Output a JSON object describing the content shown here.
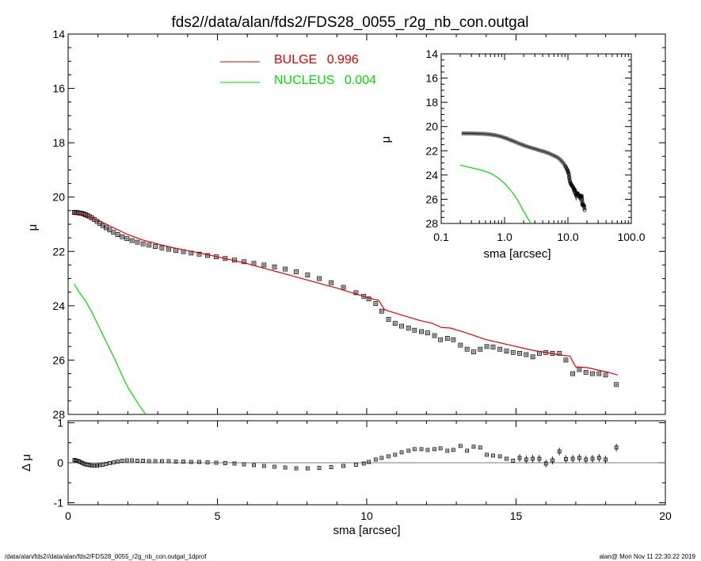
{
  "page_title": "fds2//data/alan/fds2/FDS28_0055_r2g_nb_con.outgal",
  "footer": {
    "left": "/data/alan/fds2//data/alan/fds2/FDS28_0055_r2g_nb_con.outgal_1dprof",
    "right": "alan@  Mon Nov 11 22:30:22 2019"
  },
  "colors": {
    "bulge": "#e00000",
    "nucleus": "#00dd00",
    "obs": "#808080",
    "axis": "#000000"
  },
  "chart_data": [
    {
      "type": "scatter",
      "panel": "main",
      "xlabel": "",
      "ylabel": "μ",
      "xlim": [
        0,
        20
      ],
      "ylim": [
        28,
        14
      ],
      "xticks": [
        {
          "v": 0,
          "t": "0"
        },
        {
          "v": 5,
          "t": "5"
        },
        {
          "v": 10,
          "t": "10"
        },
        {
          "v": 15,
          "t": "15"
        },
        {
          "v": 20,
          "t": "20"
        }
      ],
      "yticks": [
        {
          "v": 14,
          "t": "14"
        },
        {
          "v": 16,
          "t": "16"
        },
        {
          "v": 18,
          "t": "18"
        },
        {
          "v": 20,
          "t": "20"
        },
        {
          "v": 22,
          "t": "22"
        },
        {
          "v": 24,
          "t": "24"
        },
        {
          "v": 26,
          "t": "26"
        },
        {
          "v": 28,
          "t": "28"
        }
      ],
      "legend": [
        {
          "name": "BULGE",
          "value": "0.996",
          "color": "#e00000"
        },
        {
          "name": "NUCLEUS",
          "value": "0.004",
          "color": "#00dd00"
        }
      ],
      "observed": {
        "x": [
          0.21,
          0.25,
          0.3,
          0.35,
          0.4,
          0.46,
          0.52,
          0.58,
          0.65,
          0.72,
          0.8,
          0.88,
          0.97,
          1.06,
          1.16,
          1.27,
          1.39,
          1.52,
          1.66,
          1.81,
          1.97,
          2.14,
          2.32,
          2.51,
          2.71,
          2.92,
          3.14,
          3.37,
          3.61,
          3.86,
          4.12,
          4.39,
          4.67,
          4.96,
          5.26,
          5.57,
          5.89,
          6.22,
          6.56,
          6.91,
          7.27,
          7.64,
          8.02,
          8.41,
          8.81,
          9.22,
          9.64,
          9.9,
          10.07,
          10.3,
          10.5,
          10.73,
          10.95,
          11.17,
          11.4,
          11.6,
          11.83,
          12.04,
          12.27,
          12.47,
          12.7,
          12.9,
          13.14,
          13.36,
          13.58,
          13.8,
          14.02,
          14.23,
          14.46,
          14.68,
          14.9,
          15.12,
          15.34,
          15.56,
          15.78,
          16.0,
          16.22,
          16.45,
          16.67,
          16.9,
          17.12,
          17.34,
          17.56,
          17.78,
          18.0,
          18.36
        ],
        "y": [
          20.56,
          20.57,
          20.57,
          20.58,
          20.59,
          20.6,
          20.62,
          20.65,
          20.68,
          20.72,
          20.77,
          20.83,
          20.9,
          20.97,
          21.05,
          21.13,
          21.21,
          21.3,
          21.38,
          21.46,
          21.53,
          21.6,
          21.66,
          21.72,
          21.77,
          21.82,
          21.87,
          21.92,
          21.97,
          22.01,
          22.06,
          22.1,
          22.15,
          22.2,
          22.26,
          22.32,
          22.38,
          22.44,
          22.5,
          22.57,
          22.65,
          22.75,
          22.87,
          23.0,
          23.15,
          23.32,
          23.52,
          23.65,
          23.75,
          23.92,
          24.2,
          24.5,
          24.65,
          24.75,
          24.82,
          24.9,
          24.95,
          25.0,
          25.1,
          25.25,
          25.2,
          25.25,
          25.45,
          25.6,
          25.7,
          25.6,
          25.5,
          25.52,
          25.6,
          25.67,
          25.72,
          25.75,
          25.8,
          25.88,
          25.75,
          25.72,
          25.75,
          25.75,
          26.0,
          26.5,
          26.35,
          26.45,
          26.5,
          26.5,
          26.55,
          26.9
        ]
      },
      "model_bulge": {
        "x": [
          0.2,
          0.5,
          1.0,
          1.5,
          2.0,
          2.5,
          3.0,
          3.5,
          4.0,
          4.5,
          5.0,
          5.5,
          6.0,
          6.5,
          7.0,
          7.5,
          8.0,
          8.5,
          9.0,
          9.5,
          9.9,
          10.2,
          10.4,
          10.6,
          10.9,
          11.2,
          11.5,
          11.8,
          12.2,
          12.5,
          12.8,
          13.2,
          13.6,
          14.0,
          14.4,
          14.8,
          15.2,
          15.6,
          16.0,
          16.4,
          16.8,
          17.0,
          17.4,
          17.8,
          18.1,
          18.4
        ],
        "y": [
          20.6,
          20.65,
          20.85,
          21.12,
          21.38,
          21.58,
          21.73,
          21.86,
          21.97,
          22.08,
          22.2,
          22.32,
          22.45,
          22.6,
          22.75,
          22.9,
          23.05,
          23.2,
          23.35,
          23.52,
          23.65,
          23.75,
          23.8,
          24.15,
          24.25,
          24.35,
          24.45,
          24.55,
          24.65,
          24.8,
          24.82,
          24.95,
          25.1,
          25.25,
          25.35,
          25.45,
          25.55,
          25.65,
          25.72,
          25.8,
          25.85,
          26.25,
          26.28,
          26.38,
          26.45,
          26.55
        ]
      },
      "model_nucleus": {
        "x": [
          0.2,
          0.4,
          0.6,
          0.8,
          1.0,
          1.2,
          1.4,
          1.6,
          1.8,
          2.0,
          2.2,
          2.4,
          2.6
        ],
        "y": [
          23.2,
          23.55,
          23.85,
          24.25,
          24.7,
          25.15,
          25.6,
          26.05,
          26.55,
          27.0,
          27.35,
          27.7,
          28.0
        ]
      }
    },
    {
      "type": "scatter",
      "panel": "residual",
      "xlabel": "sma [arcsec]",
      "ylabel": "Δ μ",
      "xlim": [
        0,
        20
      ],
      "ylim": [
        -1.05,
        1.05
      ],
      "xticks": [
        {
          "v": 0,
          "t": "0"
        },
        {
          "v": 5,
          "t": "5"
        },
        {
          "v": 10,
          "t": "10"
        },
        {
          "v": 15,
          "t": "15"
        },
        {
          "v": 20,
          "t": "20"
        }
      ],
      "yticks": [
        {
          "v": -1,
          "t": "-1"
        },
        {
          "v": 0,
          "t": "0"
        },
        {
          "v": 1,
          "t": "1"
        }
      ],
      "reference_line": 0,
      "residuals": {
        "x": [
          0.21,
          0.25,
          0.3,
          0.35,
          0.4,
          0.46,
          0.52,
          0.58,
          0.65,
          0.72,
          0.8,
          0.88,
          0.97,
          1.06,
          1.16,
          1.27,
          1.39,
          1.52,
          1.66,
          1.81,
          1.97,
          2.14,
          2.32,
          2.51,
          2.71,
          2.92,
          3.14,
          3.37,
          3.61,
          3.86,
          4.12,
          4.39,
          4.67,
          4.96,
          5.26,
          5.57,
          5.89,
          6.22,
          6.56,
          6.91,
          7.27,
          7.64,
          8.02,
          8.41,
          8.81,
          9.22,
          9.64,
          9.9,
          10.07,
          10.3,
          10.5,
          10.73,
          10.95,
          11.17,
          11.4,
          11.6,
          11.83,
          12.04,
          12.27,
          12.47,
          12.7,
          12.9,
          13.14,
          13.36,
          13.58,
          13.8,
          14.02,
          14.23,
          14.46,
          14.68,
          14.9,
          15.12,
          15.34,
          15.56,
          15.78,
          16.0,
          16.22,
          16.45,
          16.67,
          16.9,
          17.12,
          17.34,
          17.56,
          17.78,
          18.0,
          18.36
        ],
        "y": [
          0.07,
          0.06,
          0.05,
          0.04,
          0.02,
          0.0,
          -0.02,
          -0.04,
          -0.05,
          -0.06,
          -0.07,
          -0.07,
          -0.07,
          -0.06,
          -0.05,
          -0.03,
          -0.01,
          0.01,
          0.03,
          0.05,
          0.06,
          0.06,
          0.05,
          0.05,
          0.04,
          0.04,
          0.04,
          0.04,
          0.03,
          0.03,
          0.02,
          0.02,
          0.01,
          0.0,
          -0.01,
          -0.02,
          -0.04,
          -0.06,
          -0.08,
          -0.1,
          -0.12,
          -0.14,
          -0.14,
          -0.13,
          -0.11,
          -0.08,
          -0.05,
          -0.02,
          0.02,
          0.08,
          0.12,
          0.16,
          0.2,
          0.26,
          0.3,
          0.34,
          0.34,
          0.32,
          0.34,
          0.36,
          0.3,
          0.32,
          0.42,
          0.3,
          0.4,
          0.38,
          0.2,
          0.18,
          0.16,
          0.1,
          0.05,
          0.12,
          0.08,
          0.1,
          0.1,
          -0.02,
          0.06,
          0.28,
          0.09,
          0.1,
          0.12,
          0.08,
          0.1,
          0.12,
          0.08,
          0.38
        ]
      }
    },
    {
      "type": "scatter",
      "panel": "inset",
      "xlabel": "sma [arcsec]",
      "ylabel": "μ",
      "xscale": "log",
      "xlim": [
        0.1,
        100
      ],
      "ylim": [
        28,
        14
      ],
      "xticks": [
        {
          "v": 0.1,
          "t": "0.1"
        },
        {
          "v": 1,
          "t": "1.0"
        },
        {
          "v": 10,
          "t": "10.0"
        },
        {
          "v": 100,
          "t": "100.0"
        }
      ],
      "yticks": [
        {
          "v": 14,
          "t": "14"
        },
        {
          "v": 16,
          "t": "16"
        },
        {
          "v": 18,
          "t": "18"
        },
        {
          "v": 20,
          "t": "20"
        },
        {
          "v": 22,
          "t": "22"
        },
        {
          "v": 24,
          "t": "24"
        },
        {
          "v": 26,
          "t": "26"
        },
        {
          "v": 28,
          "t": "28"
        }
      ]
    }
  ]
}
